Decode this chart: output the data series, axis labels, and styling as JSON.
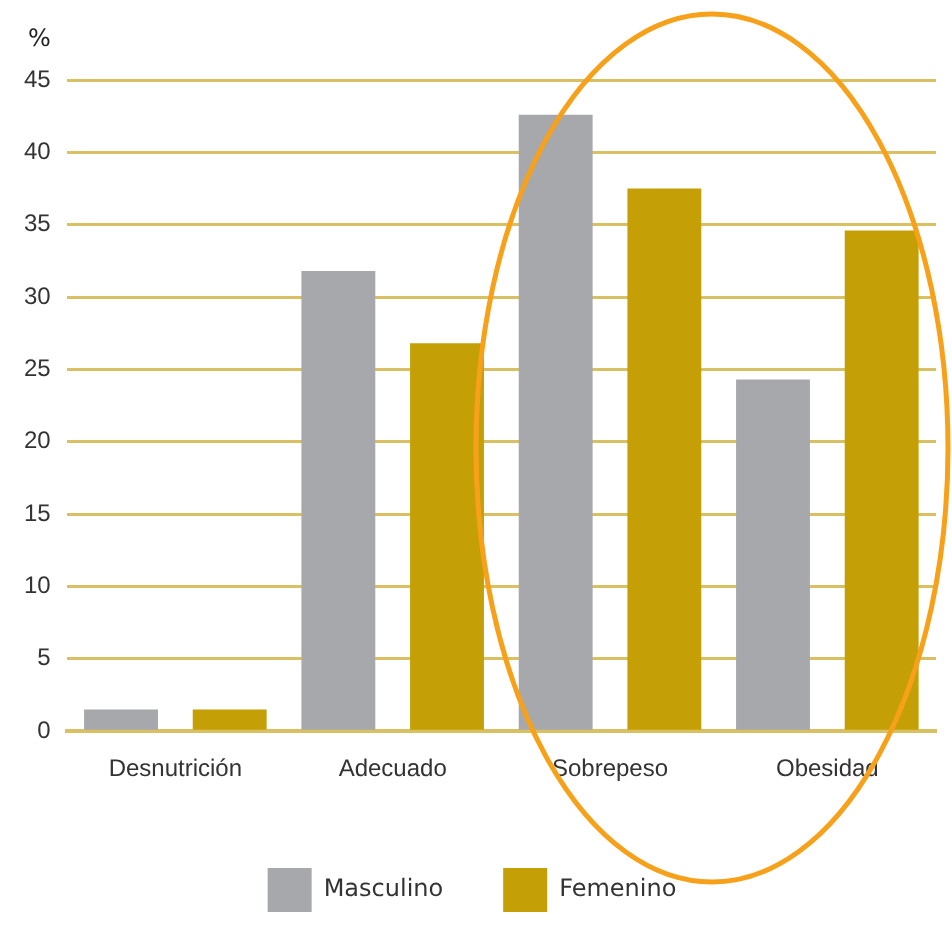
{
  "chart_data": {
    "type": "bar",
    "ylabel": "%",
    "categories": [
      "Desnutrición",
      "Adecuado",
      "Sobrepeso",
      "Obesidad"
    ],
    "series": [
      {
        "name": "Masculino",
        "color": "#a7a8ab",
        "values": [
          1.5,
          31.8,
          42.6,
          24.3
        ]
      },
      {
        "name": "Femenino",
        "color": "#c4a006",
        "values": [
          1.5,
          26.8,
          37.5,
          34.6
        ]
      }
    ],
    "ylim": [
      0,
      45
    ],
    "yticks": [
      0,
      5,
      10,
      15,
      20,
      25,
      30,
      35,
      40,
      45
    ],
    "grid": "y",
    "legend": "bottom"
  }
}
